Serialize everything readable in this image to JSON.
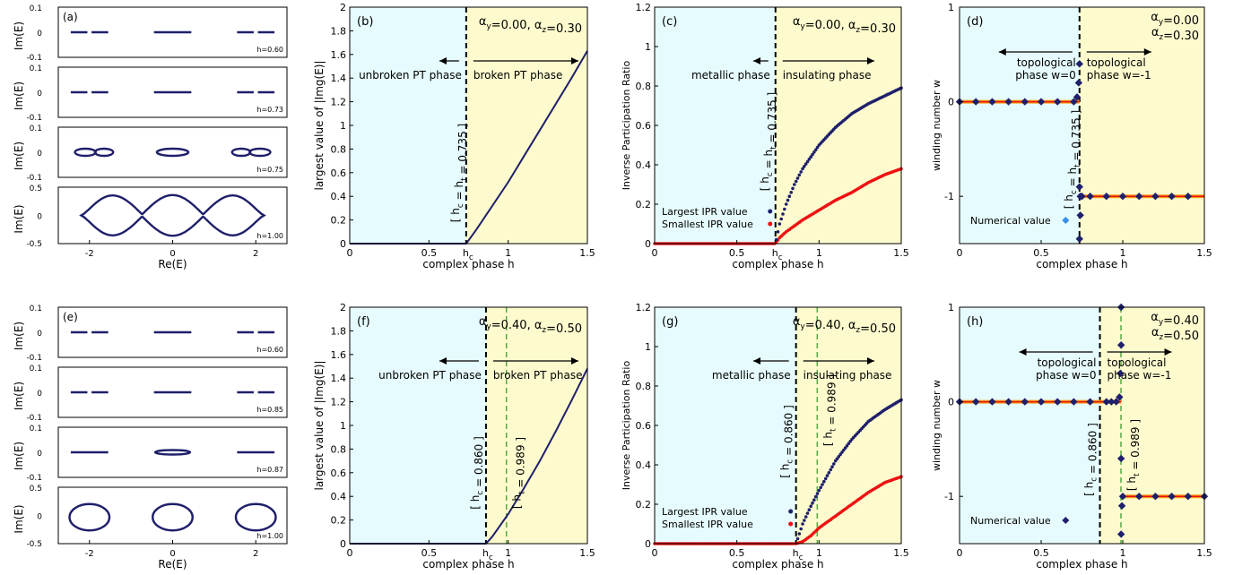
{
  "colors": {
    "metal_bg": "#e6fbfd",
    "ins_bg": "#fdfbce",
    "navy": "#1f1f6b",
    "red": "#ee1111",
    "orange": "#f39c12",
    "green": "#55aa44",
    "blue_marker": "#3a8fe8"
  },
  "rows": [
    {
      "spectrum": {
        "label": "(a)",
        "xlabel": "Re(E)",
        "ylabel": "Im(E)",
        "xticks": [
          "-2",
          "0",
          "2"
        ],
        "panels": [
          {
            "h_label": "h=0.60",
            "yticks": [
              "0.1",
              "0",
              "-0.1"
            ]
          },
          {
            "h_label": "h=0.73",
            "yticks": [
              "0.1",
              "0",
              "-0.1"
            ]
          },
          {
            "h_label": "h=0.75",
            "yticks": [
              "0.1",
              "0",
              "-0.1"
            ]
          },
          {
            "h_label": "h=1.00",
            "yticks": [
              "0.5",
              "0",
              "-0.5"
            ]
          }
        ]
      },
      "im": {
        "label": "(b)",
        "alpha": "αy=0.00, αz=0.30",
        "xlabel": "complex phase h",
        "ylabel": "largest value of |Img(E)|",
        "left_phase": "unbroken PT phase",
        "right_phase": "broken PT phase",
        "hc_text": "[ hc = ht = 0.735 ]",
        "ht_text": "",
        "xtick_labels": [
          "0",
          "0.5",
          "hc",
          "1",
          "1.5"
        ],
        "ytick_labels": [
          "0",
          "0.2",
          "0.4",
          "0.6",
          "0.8",
          "1",
          "1.2",
          "1.4",
          "1.6",
          "1.8",
          "2"
        ]
      },
      "ipr": {
        "label": "(c)",
        "alpha": "αy=0.00, αz=0.30",
        "xlabel": "complex phase h",
        "ylabel": "Inverse Participation Ratio",
        "left_phase": "metallic phase",
        "right_phase": "insulating phase",
        "hc_text": "[ hc = ht = 0.735 ]",
        "ht_text": "",
        "legend": [
          "Largest IPR value",
          "Smallest IPR value"
        ],
        "xtick_labels": [
          "0",
          "0.5",
          "hc",
          "1",
          "1.5"
        ],
        "ytick_labels": [
          "0",
          "0.2",
          "0.4",
          "0.6",
          "0.8",
          "1",
          "1.2"
        ]
      },
      "wind": {
        "label": "(d)",
        "alpha_y": "αy=0.00",
        "alpha_z": "αz=0.30",
        "xlabel": "complex phase h",
        "ylabel": "winding number w",
        "left_phase": [
          "topological",
          "phase w=0"
        ],
        "right_phase": [
          "topological",
          "phase w=-1"
        ],
        "hc_text": "[ hc = ht = 0.735 ]",
        "ht_text": "",
        "legend": "Numerical value",
        "xtick_labels": [
          "0",
          "0.5",
          "1",
          "1.5"
        ],
        "ytick_labels": [
          "1",
          "0",
          "-1"
        ]
      }
    },
    {
      "spectrum": {
        "label": "(e)",
        "xlabel": "Re(E)",
        "ylabel": "Im(E)",
        "xticks": [
          "-2",
          "0",
          "2"
        ],
        "panels": [
          {
            "h_label": "h=0.60",
            "yticks": [
              "0.1",
              "0",
              "-0.1"
            ]
          },
          {
            "h_label": "h=0.85",
            "yticks": [
              "0.1",
              "0",
              "-0.1"
            ]
          },
          {
            "h_label": "h=0.87",
            "yticks": [
              "0.1",
              "0",
              "-0.1"
            ]
          },
          {
            "h_label": "h=1.00",
            "yticks": [
              "0.5",
              "0",
              "-0.5"
            ]
          }
        ]
      },
      "im": {
        "label": "(f)",
        "alpha": "αy=0.40, αz=0.50",
        "xlabel": "complex phase h",
        "ylabel": "largest value of |Img(E)|",
        "left_phase": "unbroken PT phase",
        "right_phase": "broken PT phase",
        "hc_text": "[ hc = 0.860 ]",
        "ht_text": "[ ht = 0.989 ]",
        "xtick_labels": [
          "0",
          "0.5",
          "hc",
          "1",
          "1.5"
        ],
        "ytick_labels": [
          "0",
          "0.2",
          "0.4",
          "0.6",
          "0.8",
          "1",
          "1.2",
          "1.4",
          "1.6",
          "1.8",
          "2"
        ]
      },
      "ipr": {
        "label": "(g)",
        "alpha": "αy=0.40, αz=0.50",
        "xlabel": "complex phase h",
        "ylabel": "Inverse Participation Ratio",
        "left_phase": "metallic phase",
        "right_phase": "insulating phase",
        "hc_text": "[ hc = 0.860 ]",
        "ht_text": "[ ht = 0.989 ]",
        "legend": [
          "Largest IPR value",
          "Smallest IPR value"
        ],
        "xtick_labels": [
          "0",
          "0.5",
          "hc",
          "1",
          "1.5"
        ],
        "ytick_labels": [
          "0",
          "0.2",
          "0.4",
          "0.6",
          "0.8",
          "1",
          "1.2"
        ]
      },
      "wind": {
        "label": "(h)",
        "alpha_y": "αy=0.40",
        "alpha_z": "αz=0.50",
        "xlabel": "complex phase h",
        "ylabel": "winding number w",
        "left_phase": [
          "topological",
          "phase w=0"
        ],
        "right_phase": [
          "topological",
          "phase w=-1"
        ],
        "hc_text": "[ hc = 0.860 ]",
        "ht_text": "[ ht = 0.989 ]",
        "legend": "Numerical value",
        "xtick_labels": [
          "0",
          "0.5",
          "1",
          "1.5"
        ],
        "ytick_labels": [
          "1",
          "0",
          "-1"
        ]
      }
    }
  ],
  "chart_data": [
    {
      "type": "line",
      "title": "(b) αy=0.00, αz=0.30",
      "xlabel": "complex phase h",
      "ylabel": "largest value of |Img(E)|",
      "xlim": [
        0,
        1.5
      ],
      "ylim": [
        0,
        2
      ],
      "hc": 0.735,
      "ht": 0.735,
      "series": [
        {
          "values_x": [
            0,
            0.6,
            0.735,
            0.8,
            0.9,
            1.0,
            1.1,
            1.2,
            1.3,
            1.4,
            1.5
          ],
          "values_y": [
            0,
            0,
            0,
            0.12,
            0.32,
            0.52,
            0.74,
            0.96,
            1.18,
            1.4,
            1.63
          ]
        }
      ]
    },
    {
      "type": "scatter",
      "title": "(c) αy=0.00, αz=0.30",
      "xlabel": "complex phase h",
      "ylabel": "Inverse Participation Ratio",
      "xlim": [
        0,
        1.5
      ],
      "ylim": [
        0,
        1.2
      ],
      "hc": 0.735,
      "ht": 0.735,
      "series": [
        {
          "name": "Largest IPR value",
          "x": [
            0,
            0.3,
            0.6,
            0.735,
            0.76,
            0.8,
            0.85,
            0.9,
            1.0,
            1.1,
            1.2,
            1.3,
            1.4,
            1.5
          ],
          "y": [
            0,
            0,
            0,
            0,
            0.1,
            0.2,
            0.3,
            0.38,
            0.5,
            0.59,
            0.66,
            0.71,
            0.75,
            0.79
          ]
        },
        {
          "name": "Smallest IPR value",
          "x": [
            0,
            0.3,
            0.6,
            0.735,
            0.76,
            0.8,
            0.9,
            1.0,
            1.1,
            1.2,
            1.3,
            1.4,
            1.5
          ],
          "y": [
            0,
            0,
            0,
            0,
            0.03,
            0.06,
            0.12,
            0.17,
            0.22,
            0.26,
            0.31,
            0.35,
            0.38
          ]
        }
      ]
    },
    {
      "type": "scatter",
      "title": "(d) αy=0.00, αz=0.30",
      "xlabel": "complex phase h",
      "ylabel": "winding number w",
      "xlim": [
        0,
        1.5
      ],
      "ylim": [
        -1.5,
        1
      ],
      "hc": 0.735,
      "ht": 0.735,
      "series": [
        {
          "name": "Numerical value",
          "x": [
            0,
            0.1,
            0.2,
            0.3,
            0.4,
            0.5,
            0.6,
            0.7,
            0.72,
            0.73,
            0.735,
            0.735,
            0.735,
            0.74,
            0.74,
            0.75,
            0.8,
            0.9,
            1.0,
            1.1,
            1.2,
            1.3,
            1.4
          ],
          "y": [
            0,
            0,
            0,
            0,
            0,
            0,
            0,
            0,
            0.05,
            0.2,
            0.4,
            -0.9,
            -1.45,
            -1.2,
            -1.0,
            -1.0,
            -1,
            -1,
            -1,
            -1,
            -1,
            -1,
            -1
          ]
        }
      ]
    },
    {
      "type": "line",
      "title": "(f) αy=0.40, αz=0.50",
      "xlabel": "complex phase h",
      "ylabel": "largest value of |Img(E)|",
      "xlim": [
        0,
        1.5
      ],
      "ylim": [
        0,
        2
      ],
      "hc": 0.86,
      "ht": 0.989,
      "series": [
        {
          "values_x": [
            0,
            0.6,
            0.86,
            0.9,
            1.0,
            1.1,
            1.2,
            1.3,
            1.4,
            1.5
          ],
          "values_y": [
            0,
            0,
            0,
            0.06,
            0.25,
            0.47,
            0.7,
            0.95,
            1.21,
            1.48
          ]
        }
      ]
    },
    {
      "type": "scatter",
      "title": "(g) αy=0.40, αz=0.50",
      "xlabel": "complex phase h",
      "ylabel": "Inverse Participation Ratio",
      "xlim": [
        0,
        1.5
      ],
      "ylim": [
        0,
        1.2
      ],
      "hc": 0.86,
      "ht": 0.989,
      "series": [
        {
          "name": "Largest IPR value",
          "x": [
            0,
            0.5,
            0.86,
            0.9,
            0.95,
            1.0,
            1.1,
            1.2,
            1.3,
            1.4,
            1.5
          ],
          "y": [
            0,
            0,
            0,
            0.1,
            0.19,
            0.27,
            0.42,
            0.53,
            0.62,
            0.68,
            0.73
          ]
        },
        {
          "name": "Smallest IPR value",
          "x": [
            0,
            0.5,
            0.86,
            0.9,
            0.95,
            1.0,
            1.1,
            1.2,
            1.3,
            1.4,
            1.5
          ],
          "y": [
            0,
            0,
            0,
            0.01,
            0.04,
            0.08,
            0.14,
            0.2,
            0.26,
            0.31,
            0.34
          ]
        }
      ]
    },
    {
      "type": "scatter",
      "title": "(h) αy=0.40, αz=0.50",
      "xlabel": "complex phase h",
      "ylabel": "winding number w",
      "xlim": [
        0,
        1.5
      ],
      "ylim": [
        -1.5,
        1
      ],
      "hc": 0.86,
      "ht": 0.989,
      "series": [
        {
          "name": "Numerical value",
          "x": [
            0,
            0.1,
            0.2,
            0.3,
            0.4,
            0.5,
            0.6,
            0.7,
            0.8,
            0.9,
            0.93,
            0.96,
            0.98,
            0.985,
            0.99,
            0.99,
            0.99,
            0.99,
            0.995,
            1.0,
            1.1,
            1.2,
            1.3,
            1.4,
            1.5
          ],
          "y": [
            0,
            0,
            0,
            0,
            0,
            0,
            0,
            0,
            0,
            0,
            0,
            0,
            0.05,
            0.3,
            1.0,
            0.6,
            -0.6,
            -1.4,
            -1.1,
            -1.0,
            -1,
            -1,
            -1,
            -1,
            -1
          ]
        }
      ]
    }
  ]
}
